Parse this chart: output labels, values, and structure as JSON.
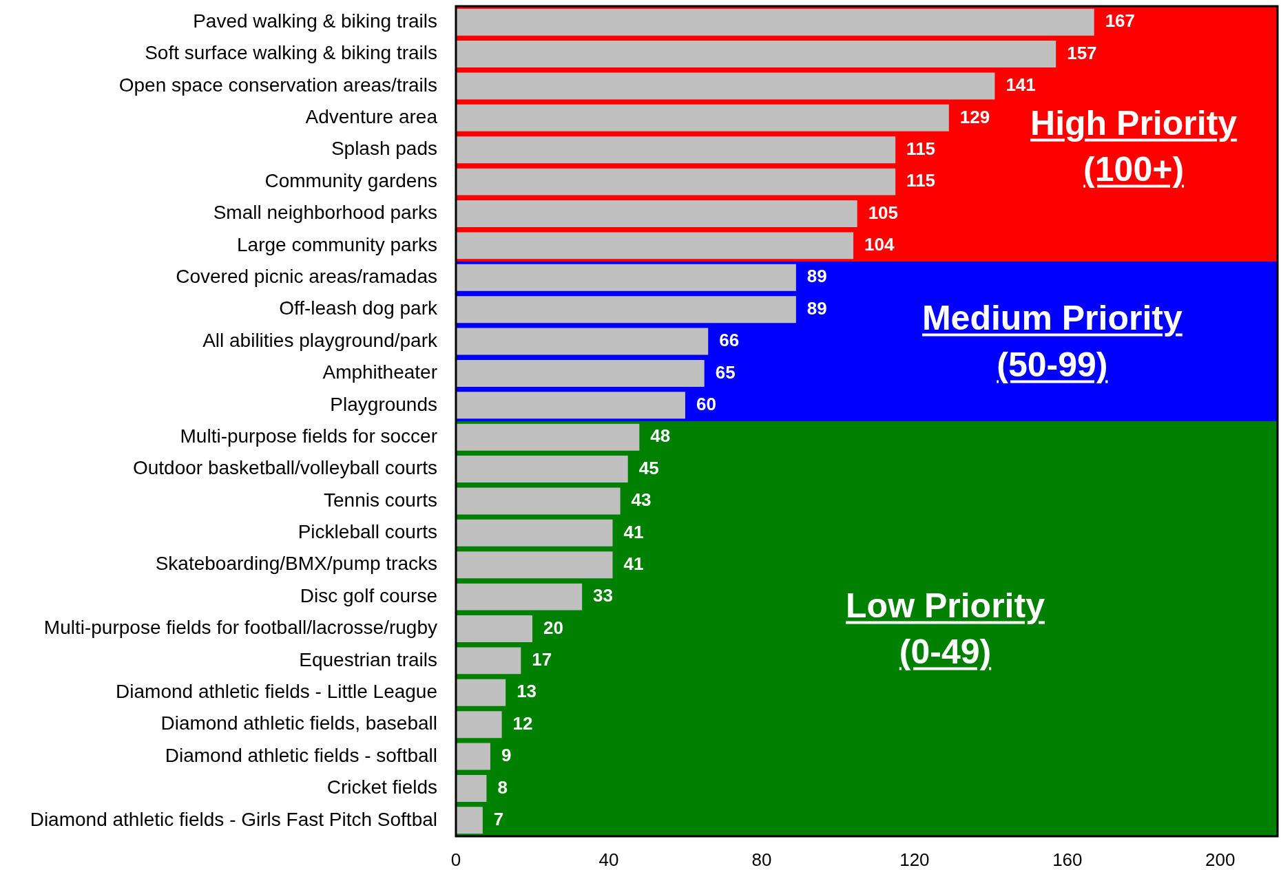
{
  "chart_data": {
    "type": "bar",
    "orientation": "horizontal",
    "categories": [
      "Paved walking & biking trails",
      "Soft surface walking & biking trails",
      "Open space conservation areas/trails",
      "Adventure area",
      "Splash pads",
      "Community gardens",
      "Small neighborhood parks",
      "Large community parks",
      "Covered picnic areas/ramadas",
      "Off-leash dog park",
      "All abilities playground/park",
      "Amphitheater",
      "Playgrounds",
      "Multi-purpose fields for soccer",
      "Outdoor basketball/volleyball courts",
      "Tennis courts",
      "Pickleball courts",
      "Skateboarding/BMX/pump tracks",
      "Disc golf course",
      "Multi-purpose fields for football/lacrosse/rugby",
      "Equestrian trails",
      "Diamond athletic fields - Little League",
      "Diamond athletic fields, baseball",
      "Diamond athletic fields - softball",
      "Cricket fields",
      "Diamond athletic fields - Girls Fast Pitch Softbal"
    ],
    "values": [
      167,
      157,
      141,
      129,
      115,
      115,
      105,
      104,
      89,
      89,
      66,
      65,
      60,
      48,
      45,
      43,
      41,
      41,
      33,
      20,
      17,
      13,
      12,
      9,
      8,
      7
    ],
    "color": "#c0c0c0",
    "xlim": [
      0,
      215
    ],
    "xticks": [
      0,
      40,
      80,
      120,
      160,
      200
    ],
    "data_labels": true,
    "legend": false,
    "bands": [
      {
        "axis": "y",
        "from": "Paved walking & biking trails",
        "to": "Large community parks",
        "label": "High Priority (100+)",
        "color": "#ff0000"
      },
      {
        "axis": "y",
        "from": "Covered picnic areas/ramadas",
        "to": "Playgrounds",
        "label": "Medium Priority (50-99)",
        "color": "#0000ff"
      },
      {
        "axis": "y",
        "from": "Multi-purpose fields for soccer",
        "to": "Diamond athletic fields - Girls Fast Pitch Softbal",
        "label": "Low Priority (0-49)",
        "color": "#008000"
      }
    ]
  }
}
